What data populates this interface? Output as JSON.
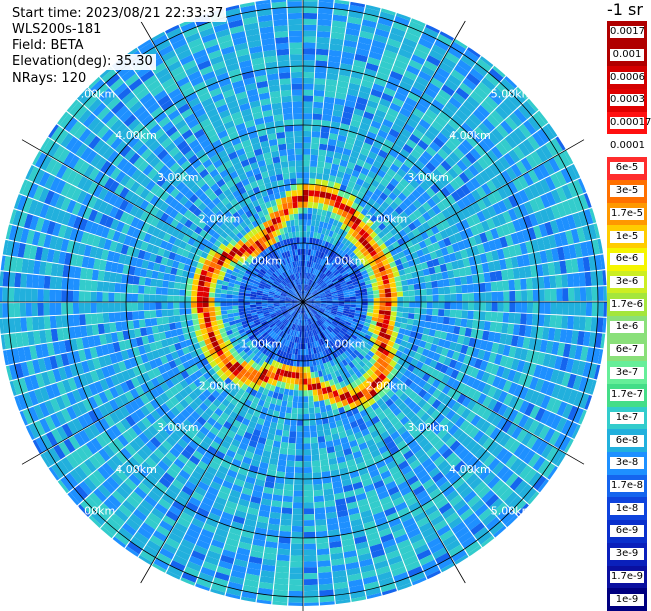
{
  "info": {
    "start_time": "Start time: 2023/08/21 22:33:37",
    "instrument": "WLS200s-181",
    "field": "Field: BETA",
    "elevation": "Elevation(deg): 35.30",
    "nrays": "NRays: 120"
  },
  "units": "-1 sr",
  "colorbar": {
    "colors": [
      "#b00000",
      "#d40000",
      "#e00000",
      "#ff1010",
      "#ffffff",
      "#ff2d2d",
      "#ff7000",
      "#ff9800",
      "#ffcc00",
      "#f5f500",
      "#ccee22",
      "#a4e63c",
      "#8ae07a",
      "#66ee99",
      "#44dd88",
      "#33cccc",
      "#22b0dd",
      "#1e90ff",
      "#1565ee",
      "#0f44dd",
      "#0a30cc",
      "#0a20bb",
      "#0a10a0",
      "#000080"
    ],
    "labels": [
      "0.0017",
      "0.001",
      "0.0006",
      "0.0003",
      "0.00017",
      "0.0001",
      "6e-5",
      "3e-5",
      "1.7e-5",
      "1e-5",
      "6e-6",
      "3e-6",
      "1.7e-6",
      "1e-6",
      "6e-7",
      "3e-7",
      "1.7e-7",
      "1e-7",
      "6e-8",
      "3e-8",
      "1.7e-8",
      "1e-8",
      "6e-9",
      "3e-9",
      "1.7e-9",
      "1e-9"
    ]
  },
  "chart_data": {
    "type": "heatmap",
    "projection": "polar-ppi",
    "field": "BETA",
    "elevation_deg": 35.3,
    "n_rays": 120,
    "range_rings_km": [
      1,
      2,
      3,
      4,
      5
    ],
    "ring_labels": [
      "1.00km",
      "2.00km",
      "3.00km",
      "4.00km",
      "5.00km"
    ],
    "max_range_km": 5.5,
    "spoke_step_deg": 30,
    "color_scale": "log",
    "color_range": [
      1e-09,
      0.0017
    ],
    "structure": {
      "inner_region": {
        "range_km": [
          0,
          1.1
        ],
        "typical_value": 3e-08
      },
      "high_backscatter_band": {
        "range_km": [
          1.2,
          2.0
        ],
        "peak_value": 0.0006
      },
      "outer_region": {
        "range_km": [
          2.0,
          5.5
        ],
        "typical_value": 1e-07
      }
    }
  }
}
